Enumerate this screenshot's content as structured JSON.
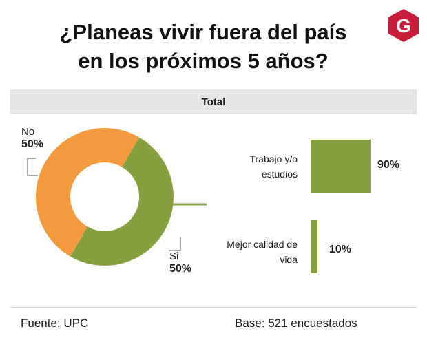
{
  "title_line1": "¿Planeas vivir fuera del país",
  "title_line2": "en los próximos 5 años?",
  "logo_text": "G",
  "section_label": "Total",
  "colors": {
    "no": "#f39a3e",
    "si": "#87a03f",
    "bar": "#87a03f",
    "band": "#e5e7e6",
    "logo": "#c81e3a"
  },
  "chart_data": [
    {
      "type": "pie",
      "donut": true,
      "slices": [
        {
          "label": "No",
          "value": 50,
          "display": "50%"
        },
        {
          "label": "Si",
          "value": 50,
          "display": "50%"
        }
      ]
    },
    {
      "type": "bar",
      "orientation": "horizontal",
      "categories": [
        "Trabajo y/o estudios",
        "Mejor calidad de vida"
      ],
      "values": [
        90,
        10
      ],
      "display": [
        "90%",
        "10%"
      ]
    }
  ],
  "footer": {
    "source": "Fuente: UPC",
    "base": "Base: 521 encuestados"
  }
}
